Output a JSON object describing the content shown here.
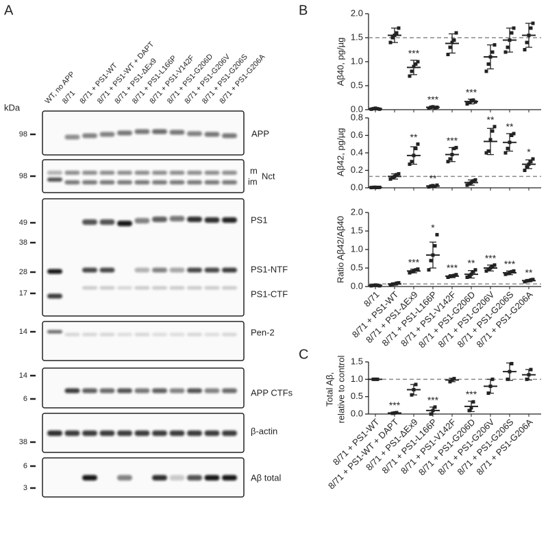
{
  "panels": {
    "a": "A",
    "b": "B",
    "c": "C"
  },
  "blot": {
    "lanes": [
      "WT, no APP",
      "8/71",
      "8/71 + PS1-WT",
      "8/71 + PS1-WT + DAPT",
      "8/71 + PS1-ΔEx9",
      "8/71 + PS1-L166P",
      "8/71 + PS1-V142F",
      "8/71 + PS1-G206D",
      "8/71 + PS1-G206V",
      "8/71 + PS1-G206S",
      "8/71 + PS1-G206A"
    ],
    "kda_label": "kDa",
    "rows": [
      {
        "labels": [
          "APP"
        ],
        "markers": [
          98
        ]
      },
      {
        "labels": [
          "m",
          "im",
          "Nct"
        ],
        "markers": [
          98
        ]
      },
      {
        "labels": [
          "PS1",
          "PS1-NTF",
          "PS1-CTF"
        ],
        "markers": [
          49,
          38,
          28,
          17
        ]
      },
      {
        "labels": [
          "Pen-2"
        ],
        "markers": [
          14
        ]
      },
      {
        "labels": [
          "APP CTFs"
        ],
        "markers": [
          14,
          6
        ]
      },
      {
        "labels": [
          "β-actin"
        ],
        "markers": [
          38
        ]
      },
      {
        "labels": [
          "Aβ total"
        ],
        "markers": [
          6,
          3
        ]
      }
    ]
  },
  "chart_data": [
    {
      "type": "dotplot",
      "ylabel": [
        "Aβ40, pg/µg"
      ],
      "color": "#222222",
      "reference": 1.5,
      "ylim": [
        0,
        2
      ],
      "yticks": [
        {
          "value": 0,
          "label": "0.0"
        },
        {
          "value": 0.5,
          "label": "0.5"
        },
        {
          "value": 1,
          "label": "1.0"
        },
        {
          "value": 1.5,
          "label": "1.5"
        },
        {
          "value": 2,
          "label": "2.0"
        }
      ],
      "values": [
        0.02,
        1.55,
        0.88,
        0.05,
        1.38,
        0.17,
        1.1,
        1.45,
        1.55
      ],
      "errors": [
        0.02,
        0.15,
        0.15,
        0.02,
        0.2,
        0.05,
        0.25,
        0.25,
        0.25
      ],
      "points": [
        [
          0.01,
          0.02,
          0.03,
          0.02,
          0.01
        ],
        [
          1.4,
          1.5,
          1.55,
          1.6,
          1.7
        ],
        [
          0.7,
          0.8,
          0.9,
          0.95,
          1.0
        ],
        [
          0.03,
          0.05,
          0.06,
          0.04,
          0.05
        ],
        [
          1.15,
          1.3,
          1.4,
          1.45,
          1.6
        ],
        [
          0.12,
          0.15,
          0.18,
          0.2,
          0.16
        ],
        [
          0.8,
          0.95,
          1.1,
          1.2,
          1.35
        ],
        [
          1.2,
          1.3,
          1.45,
          1.6,
          1.7
        ],
        [
          1.25,
          1.4,
          1.55,
          1.7,
          1.8
        ]
      ],
      "annotations": [
        null,
        null,
        "***",
        "***",
        null,
        "***",
        null,
        null,
        null
      ]
    },
    {
      "type": "dotplot",
      "ylabel": [
        "Aβ42, pg/µg"
      ],
      "color": "#222222",
      "reference": 0.13,
      "ylim": [
        0,
        0.8
      ],
      "yticks": [
        {
          "value": 0,
          "label": "0.0"
        },
        0.2,
        0.4,
        0.6,
        0.8
      ],
      "values": [
        0.005,
        0.13,
        0.37,
        0.02,
        0.38,
        0.06,
        0.53,
        0.52,
        0.27
      ],
      "errors": [
        0.005,
        0.03,
        0.1,
        0.01,
        0.08,
        0.03,
        0.15,
        0.1,
        0.05
      ],
      "points": [
        [
          0.003,
          0.005,
          0.006,
          0.004,
          0.005
        ],
        [
          0.1,
          0.12,
          0.13,
          0.15,
          0.16
        ],
        [
          0.27,
          0.3,
          0.37,
          0.45,
          0.5
        ],
        [
          0.01,
          0.02,
          0.025,
          0.015,
          0.03
        ],
        [
          0.3,
          0.33,
          0.38,
          0.45,
          0.46
        ],
        [
          0.03,
          0.05,
          0.06,
          0.08,
          0.09
        ],
        [
          0.4,
          0.42,
          0.55,
          0.65,
          0.7
        ],
        [
          0.4,
          0.45,
          0.52,
          0.6,
          0.62
        ],
        [
          0.2,
          0.24,
          0.27,
          0.3,
          0.33
        ]
      ],
      "annotations": [
        null,
        null,
        "**",
        "**",
        "***",
        null,
        "**",
        "**",
        "*"
      ]
    },
    {
      "type": "dotplot",
      "ylabel": [
        "Ratio Aβ42/Aβ40"
      ],
      "color": "#222222",
      "reference": 0.07,
      "ylim": [
        0,
        2
      ],
      "yticks": [
        {
          "value": 0,
          "label": "0.0"
        },
        {
          "value": 0.5,
          "label": "0.5"
        },
        {
          "value": 1,
          "label": "1.0"
        },
        {
          "value": 1.5,
          "label": "1.5"
        },
        {
          "value": 2,
          "label": "2.0"
        }
      ],
      "categories": [
        "8/71",
        "8/71 + PS1-WT",
        "8/71 + PS1-ΔEx9",
        "8/71 + PS1-L166P",
        "8/71 + PS1-V142F",
        "8/71 + PS1-G206D",
        "8/71 + PS1-G206V",
        "8/71 + PS1-G206S",
        "8/71 + PS1-G206A"
      ],
      "values": [
        0.03,
        0.07,
        0.42,
        0.85,
        0.28,
        0.33,
        0.5,
        0.37,
        0.16
      ],
      "errors": [
        0.01,
        0.03,
        0.05,
        0.35,
        0.04,
        0.1,
        0.08,
        0.05,
        0.03
      ],
      "points": [
        [
          0.02,
          0.03,
          0.04,
          0.03,
          0.02
        ],
        [
          0.04,
          0.06,
          0.07,
          0.09,
          0.1
        ],
        [
          0.37,
          0.4,
          0.42,
          0.45,
          0.47
        ],
        [
          0.45,
          0.7,
          0.85,
          1.1,
          1.4
        ],
        [
          0.25,
          0.27,
          0.28,
          0.3,
          0.32
        ],
        [
          0.25,
          0.28,
          0.33,
          0.4,
          0.45
        ],
        [
          0.42,
          0.47,
          0.5,
          0.55,
          0.58
        ],
        [
          0.33,
          0.35,
          0.37,
          0.4,
          0.42
        ],
        [
          0.13,
          0.15,
          0.16,
          0.18,
          0.19
        ]
      ],
      "annotations": [
        null,
        null,
        "***",
        "*",
        "***",
        "**",
        "***",
        "***",
        "**"
      ]
    },
    {
      "type": "dotplot",
      "ylabel": [
        "Total Aβ,",
        "relative to control"
      ],
      "color": "#222222",
      "reference": 1,
      "ylim": [
        0,
        1.5
      ],
      "yticks": [
        {
          "value": 0,
          "label": "0.0"
        },
        {
          "value": 0.5,
          "label": "0.5"
        },
        {
          "value": 1,
          "label": "1.0"
        },
        {
          "value": 1.5,
          "label": "1.5"
        }
      ],
      "categories": [
        "8/71 + PS1-WT",
        "8/71 + PS1-WT + DAPT",
        "8/71 + PS1-ΔEx9",
        "8/71 + PS1-L166P",
        "8/71 + PS1-V142F",
        "8/71 + PS1-G206D",
        "8/71 + PS1-G206V",
        "8/71 + PS1-G206S",
        "8/71 + PS1-G206A"
      ],
      "values": [
        1.0,
        0.03,
        0.7,
        0.1,
        0.98,
        0.22,
        0.8,
        1.22,
        1.13
      ],
      "errors": [
        0.0,
        0.02,
        0.15,
        0.1,
        0.05,
        0.15,
        0.2,
        0.25,
        0.15
      ],
      "points": [
        [
          1.0,
          1.0,
          1.0
        ],
        [
          0.02,
          0.03,
          0.04
        ],
        [
          0.55,
          0.7,
          0.85
        ],
        [
          0.0,
          0.1,
          0.2
        ],
        [
          0.93,
          0.98,
          1.02
        ],
        [
          0.1,
          0.18,
          0.35
        ],
        [
          0.6,
          0.8,
          1.0
        ],
        [
          1.0,
          1.22,
          1.45
        ],
        [
          1.0,
          1.13,
          1.28
        ]
      ],
      "annotations": [
        null,
        "***",
        null,
        "***",
        null,
        "***",
        null,
        null,
        null
      ]
    }
  ]
}
